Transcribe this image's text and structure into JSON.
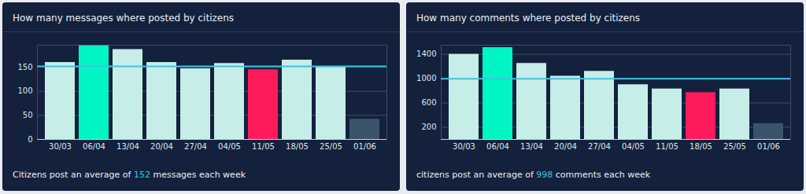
{
  "chart_data": [
    {
      "type": "bar",
      "title": "How many messages where posted by citizens",
      "categories": [
        "30/03",
        "06/04",
        "13/04",
        "20/04",
        "27/04",
        "04/05",
        "11/05",
        "18/05",
        "25/05",
        "01/06"
      ],
      "values": [
        160,
        195,
        187,
        160,
        147,
        158,
        145,
        165,
        150,
        42
      ],
      "colors": [
        "#c6ede8",
        "#00f5c4",
        "#c6ede8",
        "#c6ede8",
        "#c6ede8",
        "#c6ede8",
        "#ff1a5a",
        "#c6ede8",
        "#c6ede8",
        "#3a5368"
      ],
      "average": 152,
      "ylim": [
        0,
        196
      ],
      "yticks": [
        0,
        50,
        100,
        150
      ],
      "grid": true,
      "caption": "Citizens post an average of 152 messages each week"
    },
    {
      "type": "bar",
      "title": "How many comments where posted by citizens",
      "categories": [
        "30/03",
        "06/04",
        "13/04",
        "20/04",
        "27/04",
        "04/05",
        "11/05",
        "18/05",
        "25/05",
        "01/06"
      ],
      "values": [
        1400,
        1510,
        1250,
        1040,
        1120,
        900,
        830,
        770,
        830,
        260
      ],
      "colors": [
        "#c6ede8",
        "#00f5c4",
        "#c6ede8",
        "#c6ede8",
        "#c6ede8",
        "#c6ede8",
        "#c6ede8",
        "#ff1a5a",
        "#c6ede8",
        "#3a5368"
      ],
      "average": 998,
      "ylim": [
        0,
        1550
      ],
      "yticks": [
        200,
        600,
        1000,
        1400
      ],
      "grid": true,
      "caption": "citizens post an average of 998 comments each week"
    }
  ]
}
